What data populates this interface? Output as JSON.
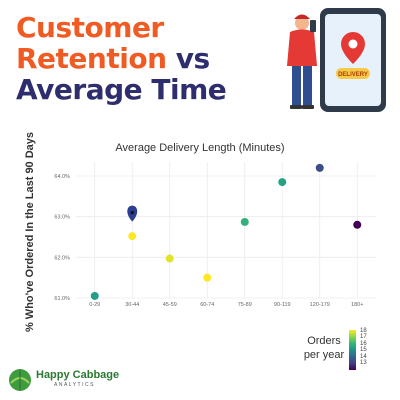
{
  "header": {
    "title_line1": "Customer",
    "title_line2_a": "Retention",
    "title_line2_b": "vs",
    "title_line3": "Average Time"
  },
  "illustration": {
    "sign_text": "DELIVERY"
  },
  "brand": {
    "name": "Happy Cabbage",
    "sub": "ANALYTICS"
  },
  "chart_data": {
    "type": "scatter",
    "title": "Average Delivery Length (Minutes)",
    "ylabel": "% Who've Ordered In the Last 90 Days",
    "categories": [
      "0-29",
      "30-44",
      "45-59",
      "60-74",
      "75-89",
      "90-119",
      "120-179",
      "180+"
    ],
    "ylim": [
      61.0,
      64.0
    ],
    "yticks": [
      "61.0%",
      "62.0%",
      "63.0%",
      "64.0%"
    ],
    "grid": true,
    "points": [
      {
        "x": "0-29",
        "y": 61.05,
        "orders": 15.8
      },
      {
        "x": "30-44",
        "y": 63.05,
        "orders": 13.3
      },
      {
        "x": "30-44",
        "y": 62.52,
        "orders": 18
      },
      {
        "x": "45-59",
        "y": 61.97,
        "orders": 17.8
      },
      {
        "x": "60-74",
        "y": 61.5,
        "orders": 18
      },
      {
        "x": "75-89",
        "y": 62.87,
        "orders": 16.2
      },
      {
        "x": "90-119",
        "y": 63.85,
        "orders": 15.9
      },
      {
        "x": "120-179",
        "y": 64.2,
        "orders": 14.2
      },
      {
        "x": "180+",
        "y": 62.8,
        "orders": 13
      }
    ],
    "marker": {
      "x": "30-44",
      "y": 63.05
    },
    "legend": {
      "title": "Orders per year",
      "ticks": [
        "18",
        "17",
        "16",
        "15",
        "14",
        "13"
      ],
      "placement": "bottom-right"
    }
  }
}
